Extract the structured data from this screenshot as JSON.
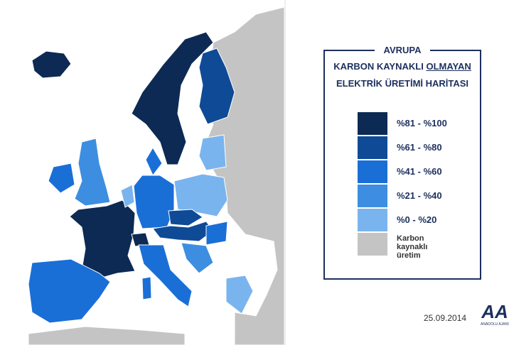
{
  "header": {
    "title": "AVRUPA",
    "subtitle_parts": [
      "KARBON KAYNAKLI",
      "OLMAYAN"
    ],
    "subtitle_line2": "ELEKTRİK ÜRETİMİ HARİTASI"
  },
  "legend": {
    "items": [
      {
        "label": "%81 - %100",
        "color": "#0d2a54"
      },
      {
        "label": "%61 - %80",
        "color": "#0f4a96"
      },
      {
        "label": "%41 - %60",
        "color": "#1a6fd6"
      },
      {
        "label": "%21 - %40",
        "color": "#3d8ee0"
      },
      {
        "label": "%0 - %20",
        "color": "#7ab4ee"
      },
      {
        "label": "Karbon kaynaklı üretim",
        "color": "#c4c4c4"
      }
    ]
  },
  "date": "25.09.2014",
  "logo": {
    "mark": "AA",
    "name": "ANADOLU AJANSI"
  }
}
